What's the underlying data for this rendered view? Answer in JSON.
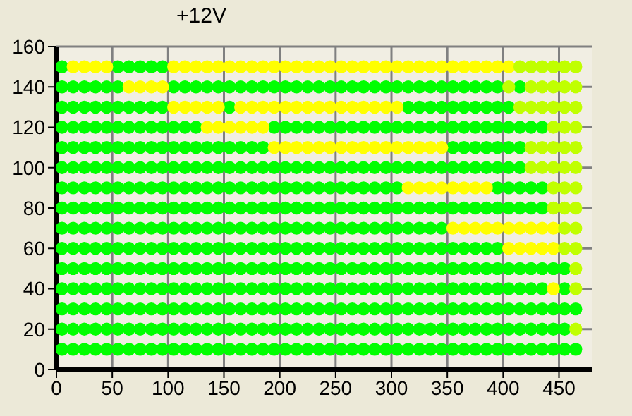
{
  "chart_data": {
    "type": "scatter",
    "title": "+12V",
    "xlim": [
      0,
      480
    ],
    "xticks": [
      0,
      50,
      100,
      150,
      200,
      250,
      300,
      350,
      400,
      450
    ],
    "ylim": [
      0,
      160
    ],
    "yticks": [
      0,
      20,
      40,
      60,
      80,
      100,
      120,
      140,
      160
    ],
    "grid": true,
    "marker": "circle",
    "series": [
      {
        "color": "#00ff00",
        "x": [
          5,
          15,
          25,
          35,
          45,
          55,
          65,
          75,
          85,
          95,
          105,
          115,
          125,
          135,
          145,
          155,
          165,
          175,
          185,
          195,
          205,
          215,
          225,
          235,
          245,
          255,
          265,
          275,
          285,
          295,
          305,
          315,
          325,
          335,
          345,
          355,
          365,
          375,
          385,
          395,
          405,
          415,
          425,
          435,
          445,
          455,
          465
        ],
        "values": [
          10,
          10,
          10,
          10,
          10,
          10,
          10,
          10,
          10,
          10,
          10,
          10,
          10,
          10,
          10,
          10,
          10,
          10,
          10,
          10,
          10,
          10,
          10,
          10,
          10,
          10,
          10,
          10,
          10,
          10,
          10,
          10,
          10,
          10,
          10,
          10,
          10,
          10,
          10,
          10,
          10,
          10,
          10,
          10,
          10,
          10,
          10
        ]
      },
      {
        "color": "#00ff00",
        "x": [
          5,
          15,
          25,
          35,
          45,
          55,
          65,
          75,
          85,
          95,
          105,
          115,
          125,
          135,
          145,
          155,
          165,
          175,
          185,
          195,
          205,
          215,
          225,
          235,
          245,
          255,
          265,
          275,
          285,
          295,
          305,
          315,
          325,
          335,
          345,
          355,
          365,
          375,
          385,
          395,
          405,
          415,
          425,
          435,
          445,
          455
        ],
        "values": [
          20,
          20,
          20,
          20,
          20,
          20,
          20,
          20,
          20,
          20,
          20,
          20,
          20,
          20,
          20,
          20,
          20,
          20,
          20,
          20,
          20,
          20,
          20,
          20,
          20,
          20,
          20,
          20,
          20,
          20,
          20,
          20,
          20,
          20,
          20,
          20,
          20,
          20,
          20,
          20,
          20,
          20,
          20,
          20,
          20,
          20
        ]
      },
      {
        "color": "#00ff00",
        "x": [
          5,
          15,
          25,
          35,
          45,
          55,
          65,
          75,
          85,
          95,
          105,
          115,
          125,
          135,
          145,
          155,
          165,
          175,
          185,
          195,
          205,
          215,
          225,
          235,
          245,
          255,
          265,
          275,
          285,
          295,
          305,
          315,
          325,
          335,
          345,
          355,
          365,
          375,
          385,
          395,
          405,
          415,
          425,
          435,
          445,
          455,
          465
        ],
        "values": [
          30,
          30,
          30,
          30,
          30,
          30,
          30,
          30,
          30,
          30,
          30,
          30,
          30,
          30,
          30,
          30,
          30,
          30,
          30,
          30,
          30,
          30,
          30,
          30,
          30,
          30,
          30,
          30,
          30,
          30,
          30,
          30,
          30,
          30,
          30,
          30,
          30,
          30,
          30,
          30,
          30,
          30,
          30,
          30,
          30,
          30,
          30
        ]
      },
      {
        "color": "#00ff00",
        "x": [
          5,
          15,
          25,
          35,
          45,
          55,
          65,
          75,
          85,
          95,
          105,
          115,
          125,
          135,
          145,
          155,
          165,
          175,
          185,
          195,
          205,
          215,
          225,
          235,
          245,
          255,
          265,
          275,
          285,
          295,
          305,
          315,
          325,
          335,
          345,
          355,
          365,
          375,
          385,
          395,
          405,
          415,
          425,
          435,
          455
        ],
        "values": [
          40,
          40,
          40,
          40,
          40,
          40,
          40,
          40,
          40,
          40,
          40,
          40,
          40,
          40,
          40,
          40,
          40,
          40,
          40,
          40,
          40,
          40,
          40,
          40,
          40,
          40,
          40,
          40,
          40,
          40,
          40,
          40,
          40,
          40,
          40,
          40,
          40,
          40,
          40,
          40,
          40,
          40,
          40,
          40,
          40
        ]
      },
      {
        "color": "#00ff00",
        "x": [
          5,
          15,
          25,
          35,
          45,
          55,
          65,
          75,
          85,
          95,
          105,
          115,
          125,
          135,
          145,
          155,
          165,
          175,
          185,
          195,
          205,
          215,
          225,
          235,
          245,
          255,
          265,
          275,
          285,
          295,
          305,
          315,
          325,
          335,
          345,
          355,
          365,
          375,
          385,
          395,
          405,
          415,
          425,
          435,
          445,
          455
        ],
        "values": [
          50,
          50,
          50,
          50,
          50,
          50,
          50,
          50,
          50,
          50,
          50,
          50,
          50,
          50,
          50,
          50,
          50,
          50,
          50,
          50,
          50,
          50,
          50,
          50,
          50,
          50,
          50,
          50,
          50,
          50,
          50,
          50,
          50,
          50,
          50,
          50,
          50,
          50,
          50,
          50,
          50,
          50,
          50,
          50,
          50,
          50
        ]
      },
      {
        "color": "#00ff00",
        "x": [
          5,
          15,
          25,
          35,
          45,
          55,
          65,
          75,
          85,
          95,
          105,
          115,
          125,
          135,
          145,
          155,
          165,
          175,
          185,
          195,
          205,
          215,
          225,
          235,
          245,
          255,
          265,
          275,
          285,
          295,
          305,
          315,
          325,
          335,
          345,
          355,
          365,
          375,
          385,
          395
        ],
        "values": [
          60,
          60,
          60,
          60,
          60,
          60,
          60,
          60,
          60,
          60,
          60,
          60,
          60,
          60,
          60,
          60,
          60,
          60,
          60,
          60,
          60,
          60,
          60,
          60,
          60,
          60,
          60,
          60,
          60,
          60,
          60,
          60,
          60,
          60,
          60,
          60,
          60,
          60,
          60,
          60
        ]
      },
      {
        "color": "#00ff00",
        "x": [
          5,
          15,
          25,
          35,
          45,
          55,
          65,
          75,
          85,
          95,
          105,
          115,
          125,
          135,
          145,
          155,
          165,
          175,
          185,
          195,
          205,
          215,
          225,
          235,
          245,
          255,
          265,
          275,
          285,
          295,
          305,
          315,
          325,
          335,
          345
        ],
        "values": [
          70,
          70,
          70,
          70,
          70,
          70,
          70,
          70,
          70,
          70,
          70,
          70,
          70,
          70,
          70,
          70,
          70,
          70,
          70,
          70,
          70,
          70,
          70,
          70,
          70,
          70,
          70,
          70,
          70,
          70,
          70,
          70,
          70,
          70,
          70
        ]
      },
      {
        "color": "#00ff00",
        "x": [
          5,
          15,
          25,
          35,
          45,
          55,
          65,
          75,
          85,
          95,
          105,
          115,
          125,
          135,
          145,
          155,
          165,
          175,
          185,
          195,
          205,
          215,
          225,
          235,
          245,
          255,
          265,
          275,
          285,
          295,
          305,
          315,
          325,
          335,
          345,
          355,
          365,
          375,
          385,
          395,
          405,
          415,
          425,
          435
        ],
        "values": [
          80,
          80,
          80,
          80,
          80,
          80,
          80,
          80,
          80,
          80,
          80,
          80,
          80,
          80,
          80,
          80,
          80,
          80,
          80,
          80,
          80,
          80,
          80,
          80,
          80,
          80,
          80,
          80,
          80,
          80,
          80,
          80,
          80,
          80,
          80,
          80,
          80,
          80,
          80,
          80,
          80,
          80,
          80,
          80
        ]
      },
      {
        "color": "#00ff00",
        "x": [
          5,
          15,
          25,
          35,
          45,
          55,
          65,
          75,
          85,
          95,
          105,
          115,
          125,
          135,
          145,
          155,
          165,
          175,
          185,
          195,
          205,
          215,
          225,
          235,
          245,
          255,
          265,
          275,
          285,
          295,
          305,
          395,
          405,
          415,
          425,
          435
        ],
        "values": [
          90,
          90,
          90,
          90,
          90,
          90,
          90,
          90,
          90,
          90,
          90,
          90,
          90,
          90,
          90,
          90,
          90,
          90,
          90,
          90,
          90,
          90,
          90,
          90,
          90,
          90,
          90,
          90,
          90,
          90,
          90,
          90,
          90,
          90,
          90,
          90
        ]
      },
      {
        "color": "#00ff00",
        "x": [
          5,
          15,
          25,
          35,
          45,
          55,
          65,
          75,
          85,
          95,
          105,
          115,
          125,
          135,
          145,
          155,
          165,
          175,
          185,
          195,
          205,
          215,
          225,
          235,
          245,
          255,
          265,
          275,
          285,
          295,
          305,
          315,
          325,
          335,
          345,
          355,
          365,
          375,
          385,
          395,
          405,
          415
        ],
        "values": [
          100,
          100,
          100,
          100,
          100,
          100,
          100,
          100,
          100,
          100,
          100,
          100,
          100,
          100,
          100,
          100,
          100,
          100,
          100,
          100,
          100,
          100,
          100,
          100,
          100,
          100,
          100,
          100,
          100,
          100,
          100,
          100,
          100,
          100,
          100,
          100,
          100,
          100,
          100,
          100,
          100,
          100
        ]
      },
      {
        "color": "#00ff00",
        "x": [
          5,
          15,
          25,
          35,
          45,
          55,
          65,
          75,
          85,
          95,
          105,
          115,
          125,
          135,
          145,
          155,
          165,
          175,
          185,
          355,
          365,
          375,
          385,
          395,
          405,
          415
        ],
        "values": [
          110,
          110,
          110,
          110,
          110,
          110,
          110,
          110,
          110,
          110,
          110,
          110,
          110,
          110,
          110,
          110,
          110,
          110,
          110,
          110,
          110,
          110,
          110,
          110,
          110,
          110
        ]
      },
      {
        "color": "#00ff00",
        "x": [
          5,
          15,
          25,
          35,
          45,
          55,
          65,
          75,
          85,
          95,
          105,
          115,
          125,
          195,
          205,
          215,
          225,
          235,
          245,
          255,
          265,
          275,
          285,
          295,
          305,
          315,
          325,
          335,
          345,
          355,
          365,
          375,
          385,
          395,
          405,
          415,
          425,
          435
        ],
        "values": [
          120,
          120,
          120,
          120,
          120,
          120,
          120,
          120,
          120,
          120,
          120,
          120,
          120,
          120,
          120,
          120,
          120,
          120,
          120,
          120,
          120,
          120,
          120,
          120,
          120,
          120,
          120,
          120,
          120,
          120,
          120,
          120,
          120,
          120,
          120,
          120,
          120,
          120
        ]
      },
      {
        "color": "#00ff00",
        "x": [
          5,
          15,
          25,
          35,
          45,
          55,
          65,
          75,
          85,
          95,
          155,
          315,
          325,
          335,
          345,
          355,
          365,
          375,
          385,
          395,
          405
        ],
        "values": [
          130,
          130,
          130,
          130,
          130,
          130,
          130,
          130,
          130,
          130,
          130,
          130,
          130,
          130,
          130,
          130,
          130,
          130,
          130,
          130,
          130
        ]
      },
      {
        "color": "#00ff00",
        "x": [
          5,
          15,
          25,
          35,
          45,
          55,
          105,
          115,
          125,
          135,
          145,
          155,
          165,
          175,
          185,
          195,
          205,
          215,
          225,
          235,
          245,
          255,
          265,
          275,
          285,
          295,
          305,
          315,
          325,
          335,
          345,
          355,
          365,
          375,
          385,
          395,
          415
        ],
        "values": [
          140,
          140,
          140,
          140,
          140,
          140,
          140,
          140,
          140,
          140,
          140,
          140,
          140,
          140,
          140,
          140,
          140,
          140,
          140,
          140,
          140,
          140,
          140,
          140,
          140,
          140,
          140,
          140,
          140,
          140,
          140,
          140,
          140,
          140,
          140,
          140,
          140
        ]
      },
      {
        "color": "#00ff00",
        "x": [
          5,
          55,
          65,
          75,
          85,
          95
        ],
        "values": [
          150,
          150,
          150,
          150,
          150,
          150
        ]
      },
      {
        "color": "#ffff00",
        "x": [
          15,
          25,
          35,
          45,
          105,
          115,
          125,
          135,
          145,
          155,
          165,
          175,
          185,
          195,
          205,
          215,
          225,
          235,
          245,
          255,
          265,
          275,
          285,
          295,
          305,
          315,
          325,
          335,
          345,
          355,
          365,
          375,
          385,
          395,
          405
        ],
        "values": [
          150,
          150,
          150,
          150,
          150,
          150,
          150,
          150,
          150,
          150,
          150,
          150,
          150,
          150,
          150,
          150,
          150,
          150,
          150,
          150,
          150,
          150,
          150,
          150,
          150,
          150,
          150,
          150,
          150,
          150,
          150,
          150,
          150,
          150,
          150
        ]
      },
      {
        "color": "#ffff00",
        "x": [
          65,
          75,
          85,
          95
        ],
        "values": [
          140,
          140,
          140,
          140
        ]
      },
      {
        "color": "#ffff00",
        "x": [
          105,
          115,
          125,
          135,
          145,
          165,
          175,
          185,
          195,
          205,
          215,
          225,
          235,
          245,
          255,
          265,
          275,
          285,
          295,
          305
        ],
        "values": [
          130,
          130,
          130,
          130,
          130,
          130,
          130,
          130,
          130,
          130,
          130,
          130,
          130,
          130,
          130,
          130,
          130,
          130,
          130,
          130
        ]
      },
      {
        "color": "#ffff00",
        "x": [
          135,
          145,
          155,
          165,
          175,
          185
        ],
        "values": [
          120,
          120,
          120,
          120,
          120,
          120
        ]
      },
      {
        "color": "#ffff00",
        "x": [
          195,
          205,
          215,
          225,
          235,
          245,
          255,
          265,
          275,
          285,
          295,
          305,
          315,
          325,
          335,
          345
        ],
        "values": [
          110,
          110,
          110,
          110,
          110,
          110,
          110,
          110,
          110,
          110,
          110,
          110,
          110,
          110,
          110,
          110
        ]
      },
      {
        "color": "#ffff00",
        "x": [
          315,
          325,
          335,
          345,
          355,
          365,
          375,
          385
        ],
        "values": [
          90,
          90,
          90,
          90,
          90,
          90,
          90,
          90
        ]
      },
      {
        "color": "#ffff00",
        "x": [
          355,
          365,
          375,
          385,
          395,
          405,
          415,
          425,
          435,
          445
        ],
        "values": [
          70,
          70,
          70,
          70,
          70,
          70,
          70,
          70,
          70,
          70
        ]
      },
      {
        "color": "#ffff00",
        "x": [
          405,
          415,
          425,
          435,
          445,
          445
        ],
        "values": [
          60,
          60,
          60,
          60,
          60,
          40
        ]
      },
      {
        "color": "#c0ff00",
        "x": [
          415,
          425,
          435,
          445,
          455,
          465,
          405,
          425,
          435,
          445,
          455,
          465,
          415,
          425,
          435,
          445,
          455,
          465,
          445,
          455,
          465,
          425,
          435,
          445,
          455,
          465
        ],
        "values": [
          150,
          150,
          150,
          150,
          150,
          150,
          140,
          140,
          140,
          140,
          140,
          140,
          130,
          130,
          130,
          130,
          130,
          130,
          120,
          120,
          120,
          110,
          110,
          110,
          110,
          110
        ]
      },
      {
        "color": "#c0ff00",
        "x": [
          425,
          435,
          445,
          455,
          465,
          445,
          455,
          465,
          445,
          455,
          465,
          455,
          465,
          455,
          465,
          465,
          465,
          465
        ],
        "values": [
          100,
          100,
          100,
          100,
          100,
          90,
          90,
          90,
          80,
          80,
          80,
          70,
          70,
          60,
          60,
          50,
          40,
          20
        ]
      }
    ]
  }
}
